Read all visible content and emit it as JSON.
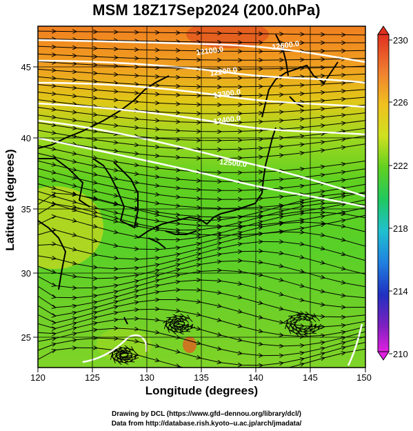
{
  "title": "MSM 18Z17Sep2024 (200.0hPa)",
  "xlabel": "Longitude (degrees)",
  "ylabel": "Latitude  (degrees)",
  "credits": [
    "Drawing by DCL (https://www.gfd–dennou.org/library/dcl/)",
    "Data from http://database.rish.kyoto–u.ac.jp/arch/jmadata/"
  ],
  "x_ticks": [
    "120",
    "125",
    "130",
    "135",
    "140",
    "145",
    "150"
  ],
  "y_ticks": [
    "25",
    "30",
    "35",
    "40",
    "45"
  ],
  "colorbar": {
    "labels": [
      "230",
      "226",
      "222",
      "218",
      "214",
      "210"
    ],
    "min": 210,
    "max": 230
  },
  "contour_labels": [
    "12100.0",
    "12200.0",
    "12300.0",
    "12400.0",
    "12500.0",
    "12600.0"
  ],
  "colors": {
    "low": "#e020e0",
    "mid": "#20c820",
    "high": "#e03020"
  }
}
